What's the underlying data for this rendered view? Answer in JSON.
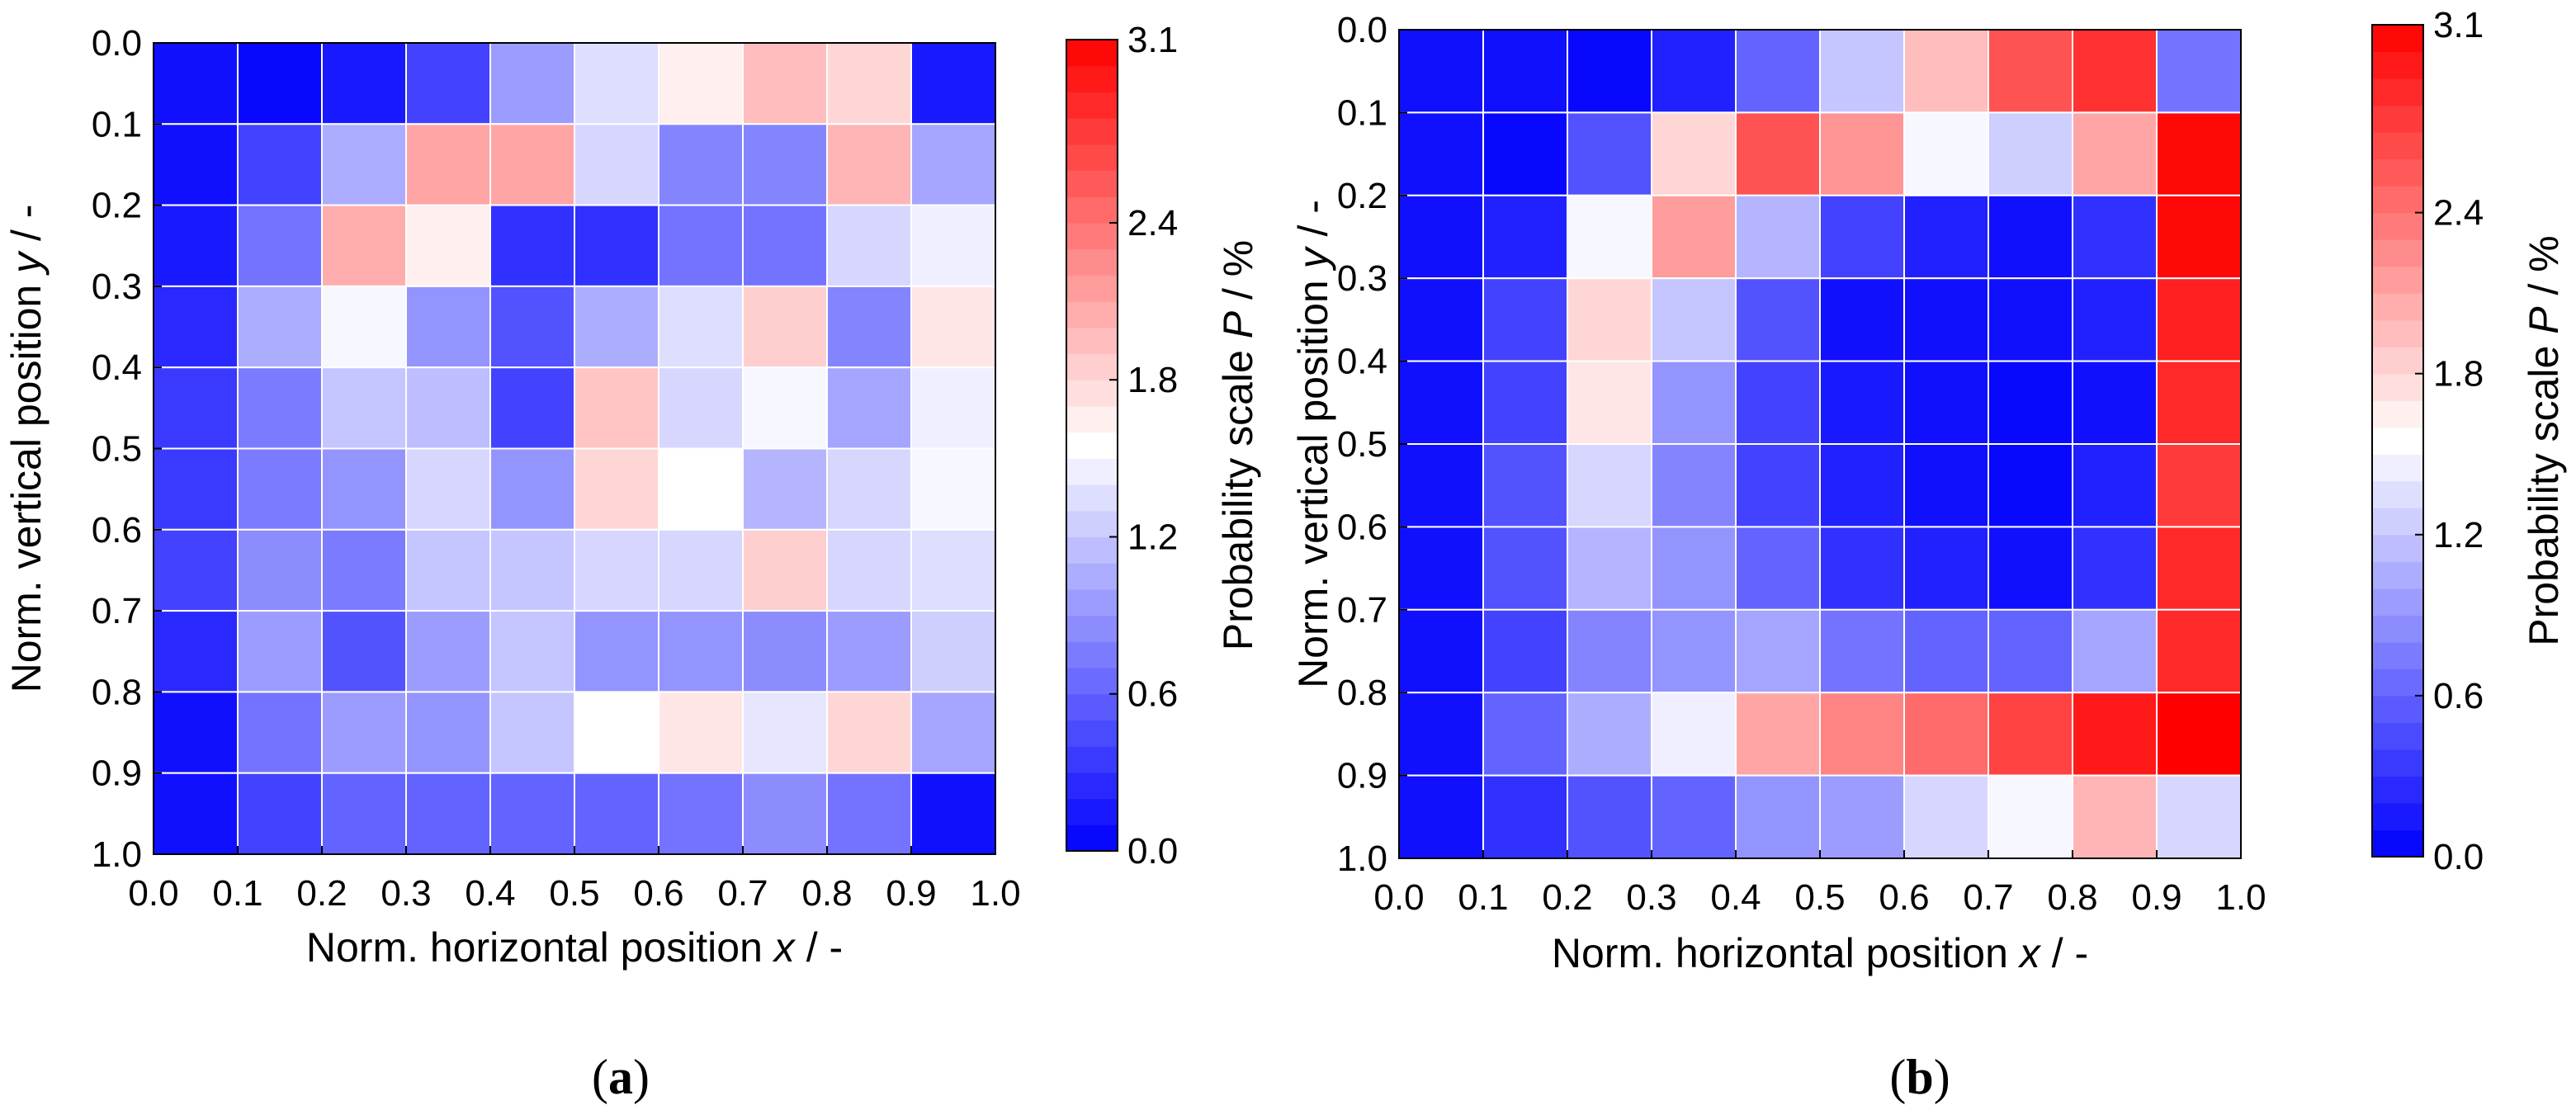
{
  "chart_data": [
    {
      "type": "heatmap",
      "panel_label": "a",
      "xlabel": "Norm. horizontal position ",
      "xlabel_var": "x",
      "xlabel_unit": " / -",
      "ylabel": "Norm. vertical position ",
      "ylabel_var": "y",
      "ylabel_unit": " / -",
      "x_ticks": [
        "0.0",
        "0.1",
        "0.2",
        "0.3",
        "0.4",
        "0.5",
        "0.6",
        "0.7",
        "0.8",
        "0.9",
        "1.0"
      ],
      "y_ticks": [
        "0.0",
        "0.1",
        "0.2",
        "0.3",
        "0.4",
        "0.5",
        "0.6",
        "0.7",
        "0.8",
        "0.9",
        "1.0"
      ],
      "xlim": [
        0,
        1
      ],
      "ylim": [
        0,
        1
      ],
      "colorbar": {
        "label": "Probability scale ",
        "label_var": "P",
        "label_unit": " / %",
        "range": [
          0,
          3.1
        ],
        "ticks": [
          "0.0",
          "0.6",
          "1.2",
          "1.8",
          "2.4",
          "3.1"
        ],
        "tick_values": [
          0,
          0.6,
          1.2,
          1.8,
          2.4,
          3.1
        ],
        "low_color": "#0000ff",
        "mid_color": "#ffffff",
        "high_color": "#ff0000"
      },
      "values": [
        [
          0.1,
          0.05,
          0.15,
          0.4,
          0.95,
          1.35,
          1.65,
          1.95,
          1.8,
          0.15
        ],
        [
          0.1,
          0.4,
          1.05,
          2.1,
          2.1,
          1.3,
          0.8,
          0.8,
          2.0,
          1.0
        ],
        [
          0.15,
          0.7,
          2.05,
          1.65,
          0.3,
          0.3,
          0.7,
          0.7,
          1.3,
          1.45
        ],
        [
          0.25,
          1.05,
          1.5,
          0.9,
          0.5,
          1.05,
          1.35,
          1.85,
          0.8,
          1.7
        ],
        [
          0.35,
          0.75,
          1.2,
          1.15,
          0.4,
          1.9,
          1.3,
          1.5,
          1.0,
          1.45
        ],
        [
          0.35,
          0.75,
          0.9,
          1.3,
          0.9,
          1.8,
          1.55,
          1.1,
          1.3,
          1.5
        ],
        [
          0.4,
          0.85,
          0.75,
          1.2,
          1.2,
          1.3,
          1.3,
          1.85,
          1.3,
          1.35
        ],
        [
          0.25,
          0.95,
          0.5,
          0.95,
          1.2,
          0.9,
          0.9,
          0.85,
          0.95,
          1.25
        ],
        [
          0.1,
          0.7,
          0.95,
          0.9,
          1.2,
          1.55,
          1.7,
          1.4,
          1.8,
          1.0
        ],
        [
          0.1,
          0.4,
          0.6,
          0.6,
          0.6,
          0.6,
          0.7,
          0.85,
          0.7,
          0.1
        ]
      ]
    },
    {
      "type": "heatmap",
      "panel_label": "b",
      "xlabel": "Norm. horizontal position ",
      "xlabel_var": "x",
      "xlabel_unit": " / -",
      "ylabel": "Norm. vertical position ",
      "ylabel_var": "y",
      "ylabel_unit": " / -",
      "x_ticks": [
        "0.0",
        "0.1",
        "0.2",
        "0.3",
        "0.4",
        "0.5",
        "0.6",
        "0.7",
        "0.8",
        "0.9",
        "1.0"
      ],
      "y_ticks": [
        "0.0",
        "0.1",
        "0.2",
        "0.3",
        "0.4",
        "0.5",
        "0.6",
        "0.7",
        "0.8",
        "0.9",
        "1.0"
      ],
      "xlim": [
        0,
        1
      ],
      "ylim": [
        0,
        1
      ],
      "colorbar": {
        "label": "Probability scale ",
        "label_var": "P",
        "label_unit": " / %",
        "range": [
          0,
          3.1
        ],
        "ticks": [
          "0.0",
          "0.6",
          "1.2",
          "1.8",
          "2.4",
          "3.1"
        ],
        "tick_values": [
          0,
          0.6,
          1.2,
          1.8,
          2.4,
          3.1
        ],
        "low_color": "#0000ff",
        "mid_color": "#ffffff",
        "high_color": "#ff0000"
      },
      "values": [
        [
          0.1,
          0.1,
          0.05,
          0.2,
          0.6,
          1.2,
          1.95,
          2.6,
          2.8,
          0.7
        ],
        [
          0.1,
          0.05,
          0.5,
          1.8,
          2.6,
          2.2,
          1.5,
          1.25,
          2.1,
          3.05
        ],
        [
          0.1,
          0.2,
          1.5,
          2.15,
          1.1,
          0.4,
          0.2,
          0.1,
          0.3,
          3.05
        ],
        [
          0.1,
          0.4,
          1.8,
          1.2,
          0.5,
          0.1,
          0.1,
          0.1,
          0.2,
          2.9
        ],
        [
          0.1,
          0.4,
          1.7,
          0.9,
          0.4,
          0.15,
          0.1,
          0.05,
          0.1,
          2.85
        ],
        [
          0.1,
          0.5,
          1.3,
          0.8,
          0.4,
          0.2,
          0.1,
          0.05,
          0.2,
          2.75
        ],
        [
          0.1,
          0.5,
          1.1,
          0.9,
          0.6,
          0.3,
          0.2,
          0.1,
          0.3,
          2.85
        ],
        [
          0.1,
          0.4,
          0.8,
          0.9,
          1.0,
          0.7,
          0.6,
          0.6,
          1.0,
          2.85
        ],
        [
          0.1,
          0.6,
          1.05,
          1.45,
          2.1,
          2.3,
          2.45,
          2.7,
          2.95,
          3.1
        ],
        [
          0.1,
          0.3,
          0.5,
          0.6,
          0.9,
          0.95,
          1.3,
          1.5,
          2.0,
          1.3
        ]
      ]
    }
  ]
}
